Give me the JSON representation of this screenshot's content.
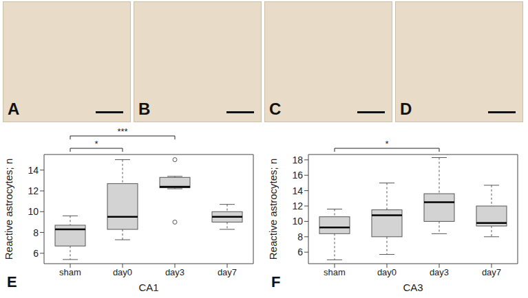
{
  "images": {
    "panels": [
      "A",
      "B",
      "C",
      "D"
    ]
  },
  "chart_data": [
    {
      "type": "box",
      "panel": "E",
      "x_label": "CA1",
      "y_label": "Reactive astrocytes; n",
      "color": "#d3d3d3",
      "categories": [
        "sham",
        "day0",
        "day3",
        "day7"
      ],
      "boxes": [
        {
          "min": 5.4,
          "q1": 6.7,
          "median": 8.3,
          "q3": 8.7,
          "max": 9.6,
          "outliers": []
        },
        {
          "min": 7.3,
          "q1": 8.3,
          "median": 9.5,
          "q3": 12.7,
          "max": 15.0,
          "outliers": []
        },
        {
          "min": 12.2,
          "q1": 12.3,
          "median": 12.4,
          "q3": 13.3,
          "max": 13.4,
          "outliers": [
            15.0,
            9.0
          ]
        },
        {
          "min": 8.3,
          "q1": 9.0,
          "median": 9.5,
          "q3": 10.0,
          "max": 10.7,
          "outliers": []
        }
      ],
      "ylim": [
        5,
        15.5
      ],
      "yticks": [
        6,
        8,
        10,
        12,
        14
      ],
      "significance": [
        {
          "from": "sham",
          "to": "day0",
          "label": "*"
        },
        {
          "from": "sham",
          "to": "day3",
          "label": "***"
        }
      ]
    },
    {
      "type": "box",
      "panel": "F",
      "x_label": "CA3",
      "y_label": "Reactive astrocytes; n",
      "color": "#d3d3d3",
      "categories": [
        "sham",
        "day0",
        "day3",
        "day7"
      ],
      "boxes": [
        {
          "min": 5.0,
          "q1": 8.4,
          "median": 9.2,
          "q3": 10.6,
          "max": 11.6,
          "outliers": []
        },
        {
          "min": 5.7,
          "q1": 8.0,
          "median": 10.8,
          "q3": 11.5,
          "max": 15.0,
          "outliers": []
        },
        {
          "min": 8.4,
          "q1": 10.0,
          "median": 12.5,
          "q3": 13.6,
          "max": 18.3,
          "outliers": []
        },
        {
          "min": 8.0,
          "q1": 9.4,
          "median": 9.8,
          "q3": 12.0,
          "max": 14.7,
          "outliers": []
        }
      ],
      "ylim": [
        4.5,
        18.7
      ],
      "yticks": [
        6,
        8,
        10,
        12,
        14,
        16,
        18
      ],
      "significance": [
        {
          "from": "sham",
          "to": "day3",
          "label": "*"
        }
      ]
    }
  ]
}
